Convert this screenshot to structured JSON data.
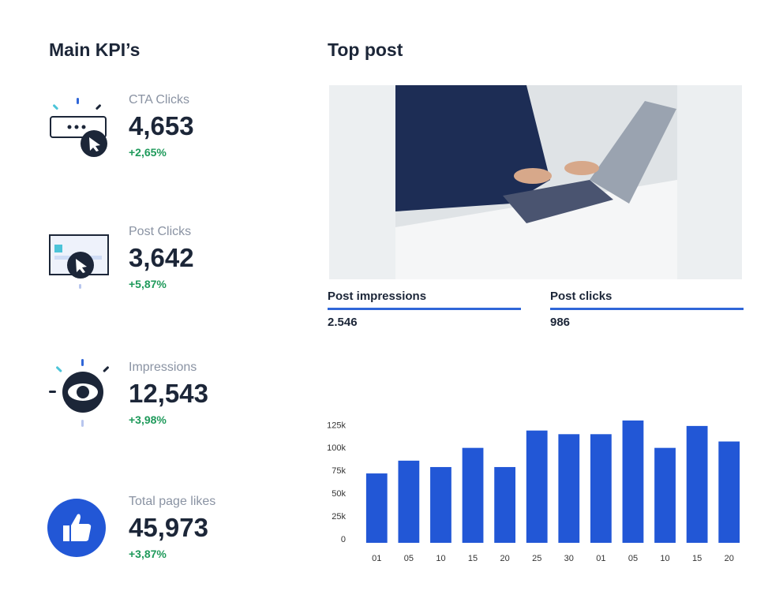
{
  "kpi_header": {
    "title": "Main KPI’s"
  },
  "kpis": [
    {
      "label": "CTA Clicks",
      "value": "4,653",
      "change": "+2,65%"
    },
    {
      "label": "Post Clicks",
      "value": "3,642",
      "change": "+5,87%"
    },
    {
      "label": "Impressions",
      "value": "12,543",
      "change": "+3,98%"
    },
    {
      "label": "Total page likes",
      "value": "45,973",
      "change": "+3,87%"
    }
  ],
  "top_post": {
    "title": "Top post",
    "metrics": [
      {
        "label": "Post impressions",
        "value": "2.546"
      },
      {
        "label": "Post clicks",
        "value": "986"
      }
    ]
  },
  "chart_data": {
    "type": "bar",
    "categories": [
      "01",
      "05",
      "10",
      "15",
      "20",
      "25",
      "30",
      "01",
      "05",
      "10",
      "15",
      "20"
    ],
    "values": [
      76000,
      90000,
      83000,
      104000,
      83000,
      123000,
      119000,
      119000,
      134000,
      104000,
      128000,
      111000
    ],
    "color": "#2257d6",
    "ylim": [
      0,
      140000
    ],
    "yticks": [
      0,
      {
        "value": 25000,
        "label": "25k"
      },
      {
        "value": 50000,
        "label": "50k"
      },
      {
        "value": 75000,
        "label": "75k"
      },
      {
        "value": 100000,
        "label": "100k"
      },
      {
        "value": 125000,
        "label": "125k"
      }
    ],
    "grid": false
  }
}
